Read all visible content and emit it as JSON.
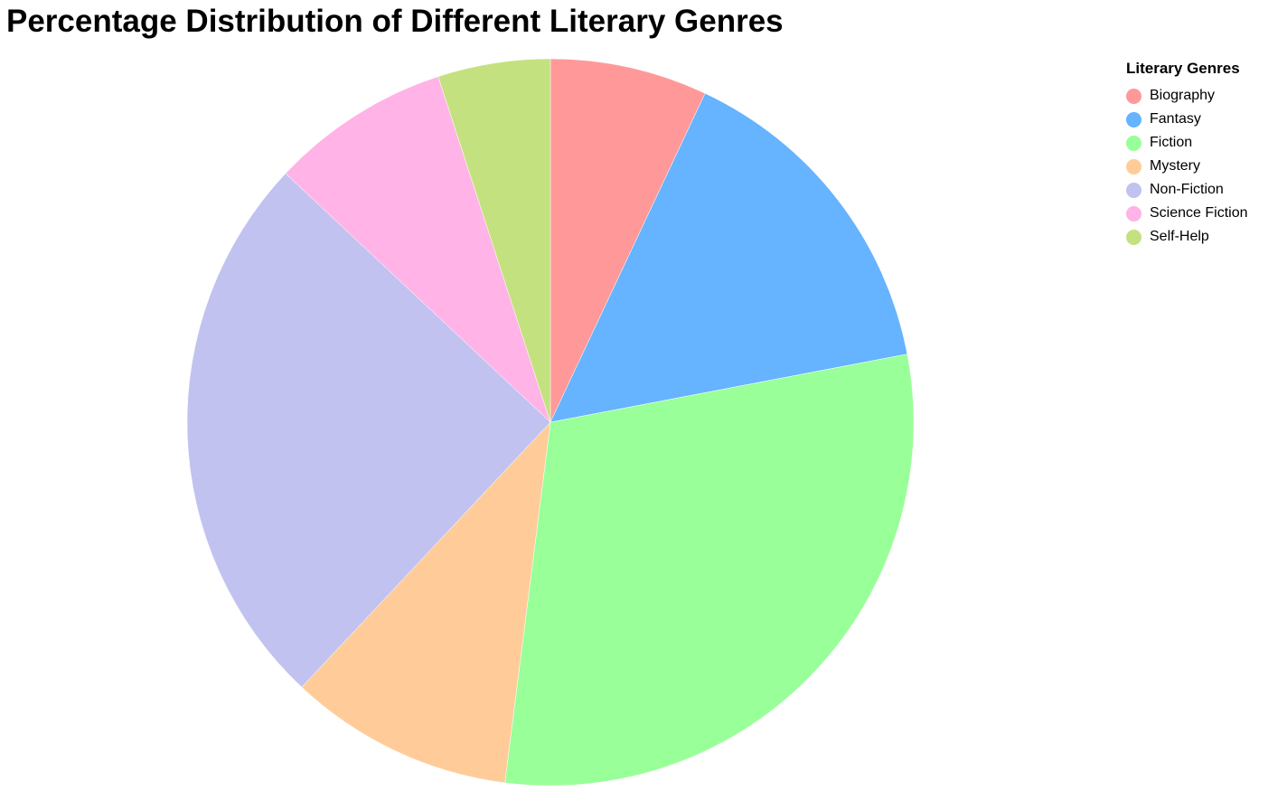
{
  "title": "Percentage Distribution of Different Literary Genres",
  "legend_title": "Literary Genres",
  "chart_data": {
    "type": "pie",
    "title": "Percentage Distribution of Different Literary Genres",
    "legend_title": "Literary Genres",
    "legend_position": "top-right",
    "start": "top (12 o'clock)",
    "direction": "clockwise",
    "slices": [
      {
        "label": "Biography",
        "value": 7,
        "color": "#ff9999"
      },
      {
        "label": "Fantasy",
        "value": 15,
        "color": "#66b3ff"
      },
      {
        "label": "Fiction",
        "value": 30,
        "color": "#99ff99"
      },
      {
        "label": "Mystery",
        "value": 10,
        "color": "#ffcc99"
      },
      {
        "label": "Non-Fiction",
        "value": 25,
        "color": "#c2c2f0"
      },
      {
        "label": "Science Fiction",
        "value": 8,
        "color": "#ffb3e6"
      },
      {
        "label": "Self-Help",
        "value": 5,
        "color": "#c4e17f"
      }
    ]
  }
}
